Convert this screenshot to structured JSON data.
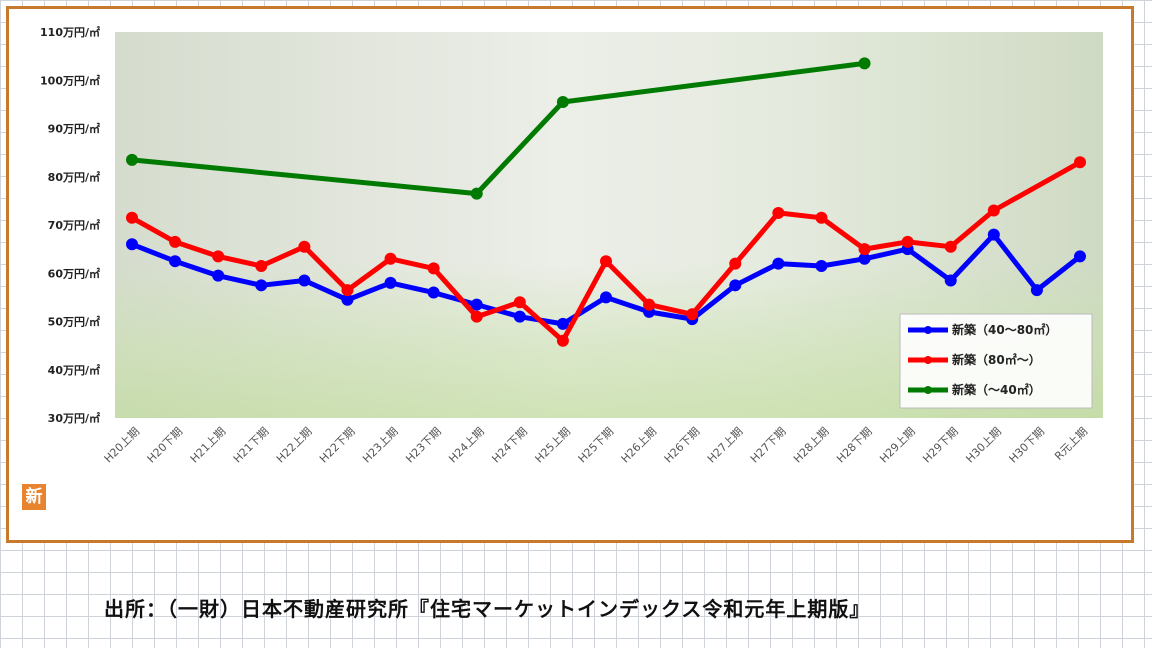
{
  "chart_data": {
    "type": "line",
    "yunit_label": "万円/㎡",
    "ylim": [
      30,
      110
    ],
    "yticks": [
      "30万円/㎡",
      "40万円/㎡",
      "50万円/㎡",
      "60万円/㎡",
      "70万円/㎡",
      "80万円/㎡",
      "90万円/㎡",
      "100万円/㎡",
      "110万円/㎡"
    ],
    "categories": [
      "H20上期",
      "H20下期",
      "H21上期",
      "H21下期",
      "H22上期",
      "H22下期",
      "H23上期",
      "H23下期",
      "H24上期",
      "H24下期",
      "H25上期",
      "H25下期",
      "H26上期",
      "H26下期",
      "H27上期",
      "H27下期",
      "H28上期",
      "H28下期",
      "H29上期",
      "H29下期",
      "H30上期",
      "H30下期",
      "R元上期"
    ],
    "legend_position": "bottom-right",
    "series": [
      {
        "name": "新築（40～80㎡）",
        "color": "#0000ff",
        "marker": "circle",
        "values": [
          66,
          62.5,
          59.5,
          57.5,
          58.5,
          54.5,
          58,
          56,
          53.5,
          51,
          49.5,
          55,
          52,
          50.5,
          57.5,
          62,
          61.5,
          63,
          65,
          58.5,
          68,
          56.5,
          63.5
        ]
      },
      {
        "name": "新築（80㎡～）",
        "color": "#ff0000",
        "marker": "circle",
        "values": [
          71.5,
          66.5,
          63.5,
          61.5,
          65.5,
          56.5,
          63,
          61,
          51,
          54,
          46,
          62.5,
          53.5,
          51.5,
          62,
          72.5,
          71.5,
          65,
          66.5,
          65.5,
          73,
          null,
          83
        ]
      },
      {
        "name": "新築（～40㎡）",
        "color": "#007a00",
        "marker": "circle",
        "values": [
          83.5,
          null,
          null,
          null,
          null,
          null,
          null,
          null,
          76.5,
          null,
          95.5,
          null,
          null,
          null,
          null,
          null,
          null,
          103.5,
          null,
          null,
          null,
          null,
          null
        ]
      }
    ]
  },
  "badge_text": "新",
  "source_text": "出所：（一財）日本不動産研究所『住宅マーケットインデックス令和元年上期版』"
}
